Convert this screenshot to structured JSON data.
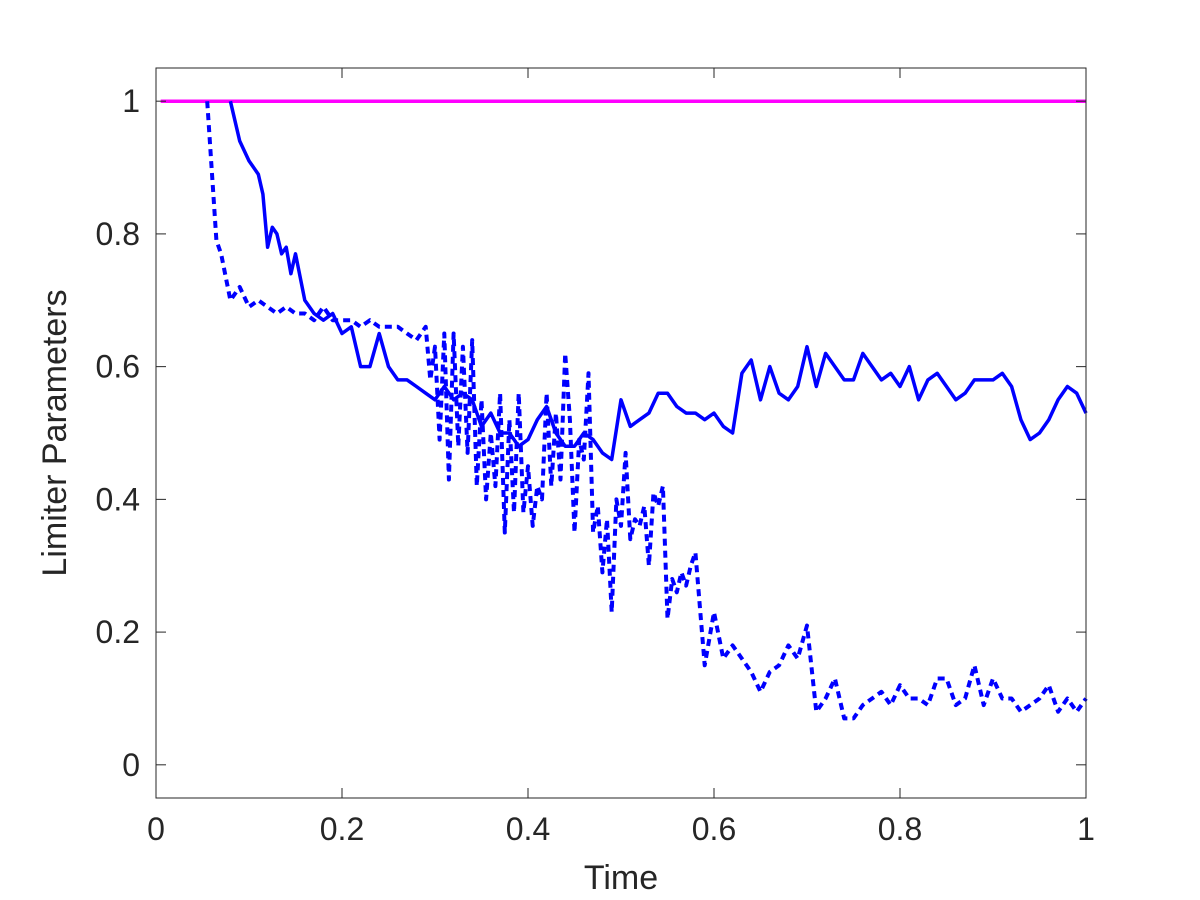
{
  "chart_data": {
    "type": "line",
    "title": "",
    "xlabel": "Time",
    "ylabel": "Limiter Parameters",
    "xlim": [
      0,
      1
    ],
    "ylim": [
      -0.05,
      1.05
    ],
    "xticks": [
      0,
      0.2,
      0.4,
      0.6,
      0.8,
      1
    ],
    "xtick_labels": [
      "0",
      "0.2",
      "0.4",
      "0.6",
      "0.8",
      "1"
    ],
    "yticks": [
      0,
      0.2,
      0.4,
      0.6,
      0.8,
      1
    ],
    "ytick_labels": [
      "0",
      "0.2",
      "0.4",
      "0.6",
      "0.8",
      "1"
    ],
    "grid": false,
    "legend": "none",
    "series": [
      {
        "style": "solid",
        "color": "#ff00ff",
        "x": [
          0.005,
          1.0
        ],
        "y": [
          1.0,
          1.0
        ]
      },
      {
        "style": "solid",
        "color": "#0000ff",
        "x": [
          0.08,
          0.09,
          0.1,
          0.11,
          0.115,
          0.12,
          0.125,
          0.13,
          0.135,
          0.14,
          0.145,
          0.15,
          0.16,
          0.17,
          0.18,
          0.19,
          0.2,
          0.21,
          0.22,
          0.23,
          0.24,
          0.25,
          0.26,
          0.27,
          0.28,
          0.29,
          0.3,
          0.31,
          0.32,
          0.33,
          0.34,
          0.35,
          0.36,
          0.37,
          0.38,
          0.39,
          0.4,
          0.41,
          0.42,
          0.43,
          0.44,
          0.45,
          0.46,
          0.47,
          0.48,
          0.49,
          0.5,
          0.51,
          0.52,
          0.53,
          0.54,
          0.55,
          0.56,
          0.57,
          0.58,
          0.59,
          0.6,
          0.61,
          0.62,
          0.63,
          0.64,
          0.65,
          0.66,
          0.67,
          0.68,
          0.69,
          0.7,
          0.71,
          0.72,
          0.73,
          0.74,
          0.75,
          0.76,
          0.77,
          0.78,
          0.79,
          0.8,
          0.81,
          0.82,
          0.83,
          0.84,
          0.85,
          0.86,
          0.87,
          0.88,
          0.89,
          0.9,
          0.91,
          0.92,
          0.93,
          0.94,
          0.95,
          0.96,
          0.97,
          0.98,
          0.99,
          1.0
        ],
        "y": [
          1.0,
          0.94,
          0.91,
          0.89,
          0.86,
          0.78,
          0.81,
          0.8,
          0.77,
          0.78,
          0.74,
          0.77,
          0.7,
          0.68,
          0.67,
          0.68,
          0.65,
          0.66,
          0.6,
          0.6,
          0.65,
          0.6,
          0.58,
          0.58,
          0.57,
          0.56,
          0.55,
          0.57,
          0.55,
          0.56,
          0.55,
          0.51,
          0.53,
          0.5,
          0.5,
          0.48,
          0.49,
          0.52,
          0.54,
          0.5,
          0.48,
          0.48,
          0.5,
          0.49,
          0.47,
          0.46,
          0.55,
          0.51,
          0.52,
          0.53,
          0.56,
          0.56,
          0.54,
          0.53,
          0.53,
          0.52,
          0.53,
          0.51,
          0.5,
          0.59,
          0.61,
          0.55,
          0.6,
          0.56,
          0.55,
          0.57,
          0.63,
          0.57,
          0.62,
          0.6,
          0.58,
          0.58,
          0.62,
          0.6,
          0.58,
          0.59,
          0.57,
          0.6,
          0.55,
          0.58,
          0.59,
          0.57,
          0.55,
          0.56,
          0.58,
          0.58,
          0.58,
          0.59,
          0.57,
          0.52,
          0.49,
          0.5,
          0.52,
          0.55,
          0.57,
          0.56,
          0.53
        ]
      },
      {
        "style": "dashed",
        "color": "#0000ff",
        "x": [
          0.055,
          0.065,
          0.07,
          0.08,
          0.09,
          0.1,
          0.11,
          0.12,
          0.13,
          0.14,
          0.15,
          0.16,
          0.17,
          0.18,
          0.19,
          0.2,
          0.21,
          0.22,
          0.23,
          0.24,
          0.25,
          0.26,
          0.27,
          0.28,
          0.29,
          0.295,
          0.3,
          0.305,
          0.31,
          0.315,
          0.32,
          0.325,
          0.33,
          0.335,
          0.34,
          0.345,
          0.35,
          0.355,
          0.36,
          0.365,
          0.37,
          0.375,
          0.38,
          0.385,
          0.39,
          0.395,
          0.4,
          0.405,
          0.41,
          0.415,
          0.42,
          0.425,
          0.43,
          0.435,
          0.44,
          0.445,
          0.45,
          0.455,
          0.46,
          0.465,
          0.47,
          0.475,
          0.48,
          0.485,
          0.49,
          0.495,
          0.5,
          0.505,
          0.51,
          0.515,
          0.52,
          0.525,
          0.53,
          0.535,
          0.54,
          0.545,
          0.55,
          0.555,
          0.56,
          0.565,
          0.57,
          0.575,
          0.58,
          0.59,
          0.6,
          0.61,
          0.62,
          0.63,
          0.64,
          0.65,
          0.66,
          0.67,
          0.68,
          0.69,
          0.7,
          0.71,
          0.72,
          0.73,
          0.74,
          0.75,
          0.76,
          0.77,
          0.78,
          0.79,
          0.8,
          0.81,
          0.82,
          0.83,
          0.84,
          0.85,
          0.86,
          0.87,
          0.88,
          0.89,
          0.9,
          0.91,
          0.92,
          0.93,
          0.94,
          0.95,
          0.96,
          0.97,
          0.98,
          0.99,
          1.0
        ],
        "y": [
          1.0,
          0.79,
          0.77,
          0.7,
          0.72,
          0.69,
          0.7,
          0.69,
          0.68,
          0.69,
          0.68,
          0.68,
          0.67,
          0.69,
          0.67,
          0.67,
          0.67,
          0.66,
          0.67,
          0.66,
          0.66,
          0.66,
          0.65,
          0.64,
          0.66,
          0.58,
          0.63,
          0.49,
          0.65,
          0.43,
          0.65,
          0.48,
          0.63,
          0.47,
          0.64,
          0.42,
          0.55,
          0.4,
          0.5,
          0.42,
          0.56,
          0.35,
          0.52,
          0.38,
          0.56,
          0.38,
          0.45,
          0.36,
          0.42,
          0.4,
          0.56,
          0.42,
          0.53,
          0.43,
          0.62,
          0.52,
          0.35,
          0.49,
          0.46,
          0.59,
          0.35,
          0.39,
          0.29,
          0.37,
          0.23,
          0.4,
          0.36,
          0.47,
          0.34,
          0.37,
          0.36,
          0.39,
          0.3,
          0.41,
          0.39,
          0.42,
          0.22,
          0.28,
          0.26,
          0.29,
          0.27,
          0.3,
          0.32,
          0.15,
          0.23,
          0.16,
          0.18,
          0.16,
          0.14,
          0.11,
          0.14,
          0.15,
          0.18,
          0.16,
          0.21,
          0.08,
          0.1,
          0.13,
          0.07,
          0.07,
          0.09,
          0.1,
          0.11,
          0.09,
          0.12,
          0.1,
          0.1,
          0.09,
          0.13,
          0.13,
          0.09,
          0.1,
          0.15,
          0.09,
          0.13,
          0.1,
          0.1,
          0.08,
          0.09,
          0.1,
          0.12,
          0.08,
          0.1,
          0.08,
          0.1
        ]
      }
    ]
  }
}
